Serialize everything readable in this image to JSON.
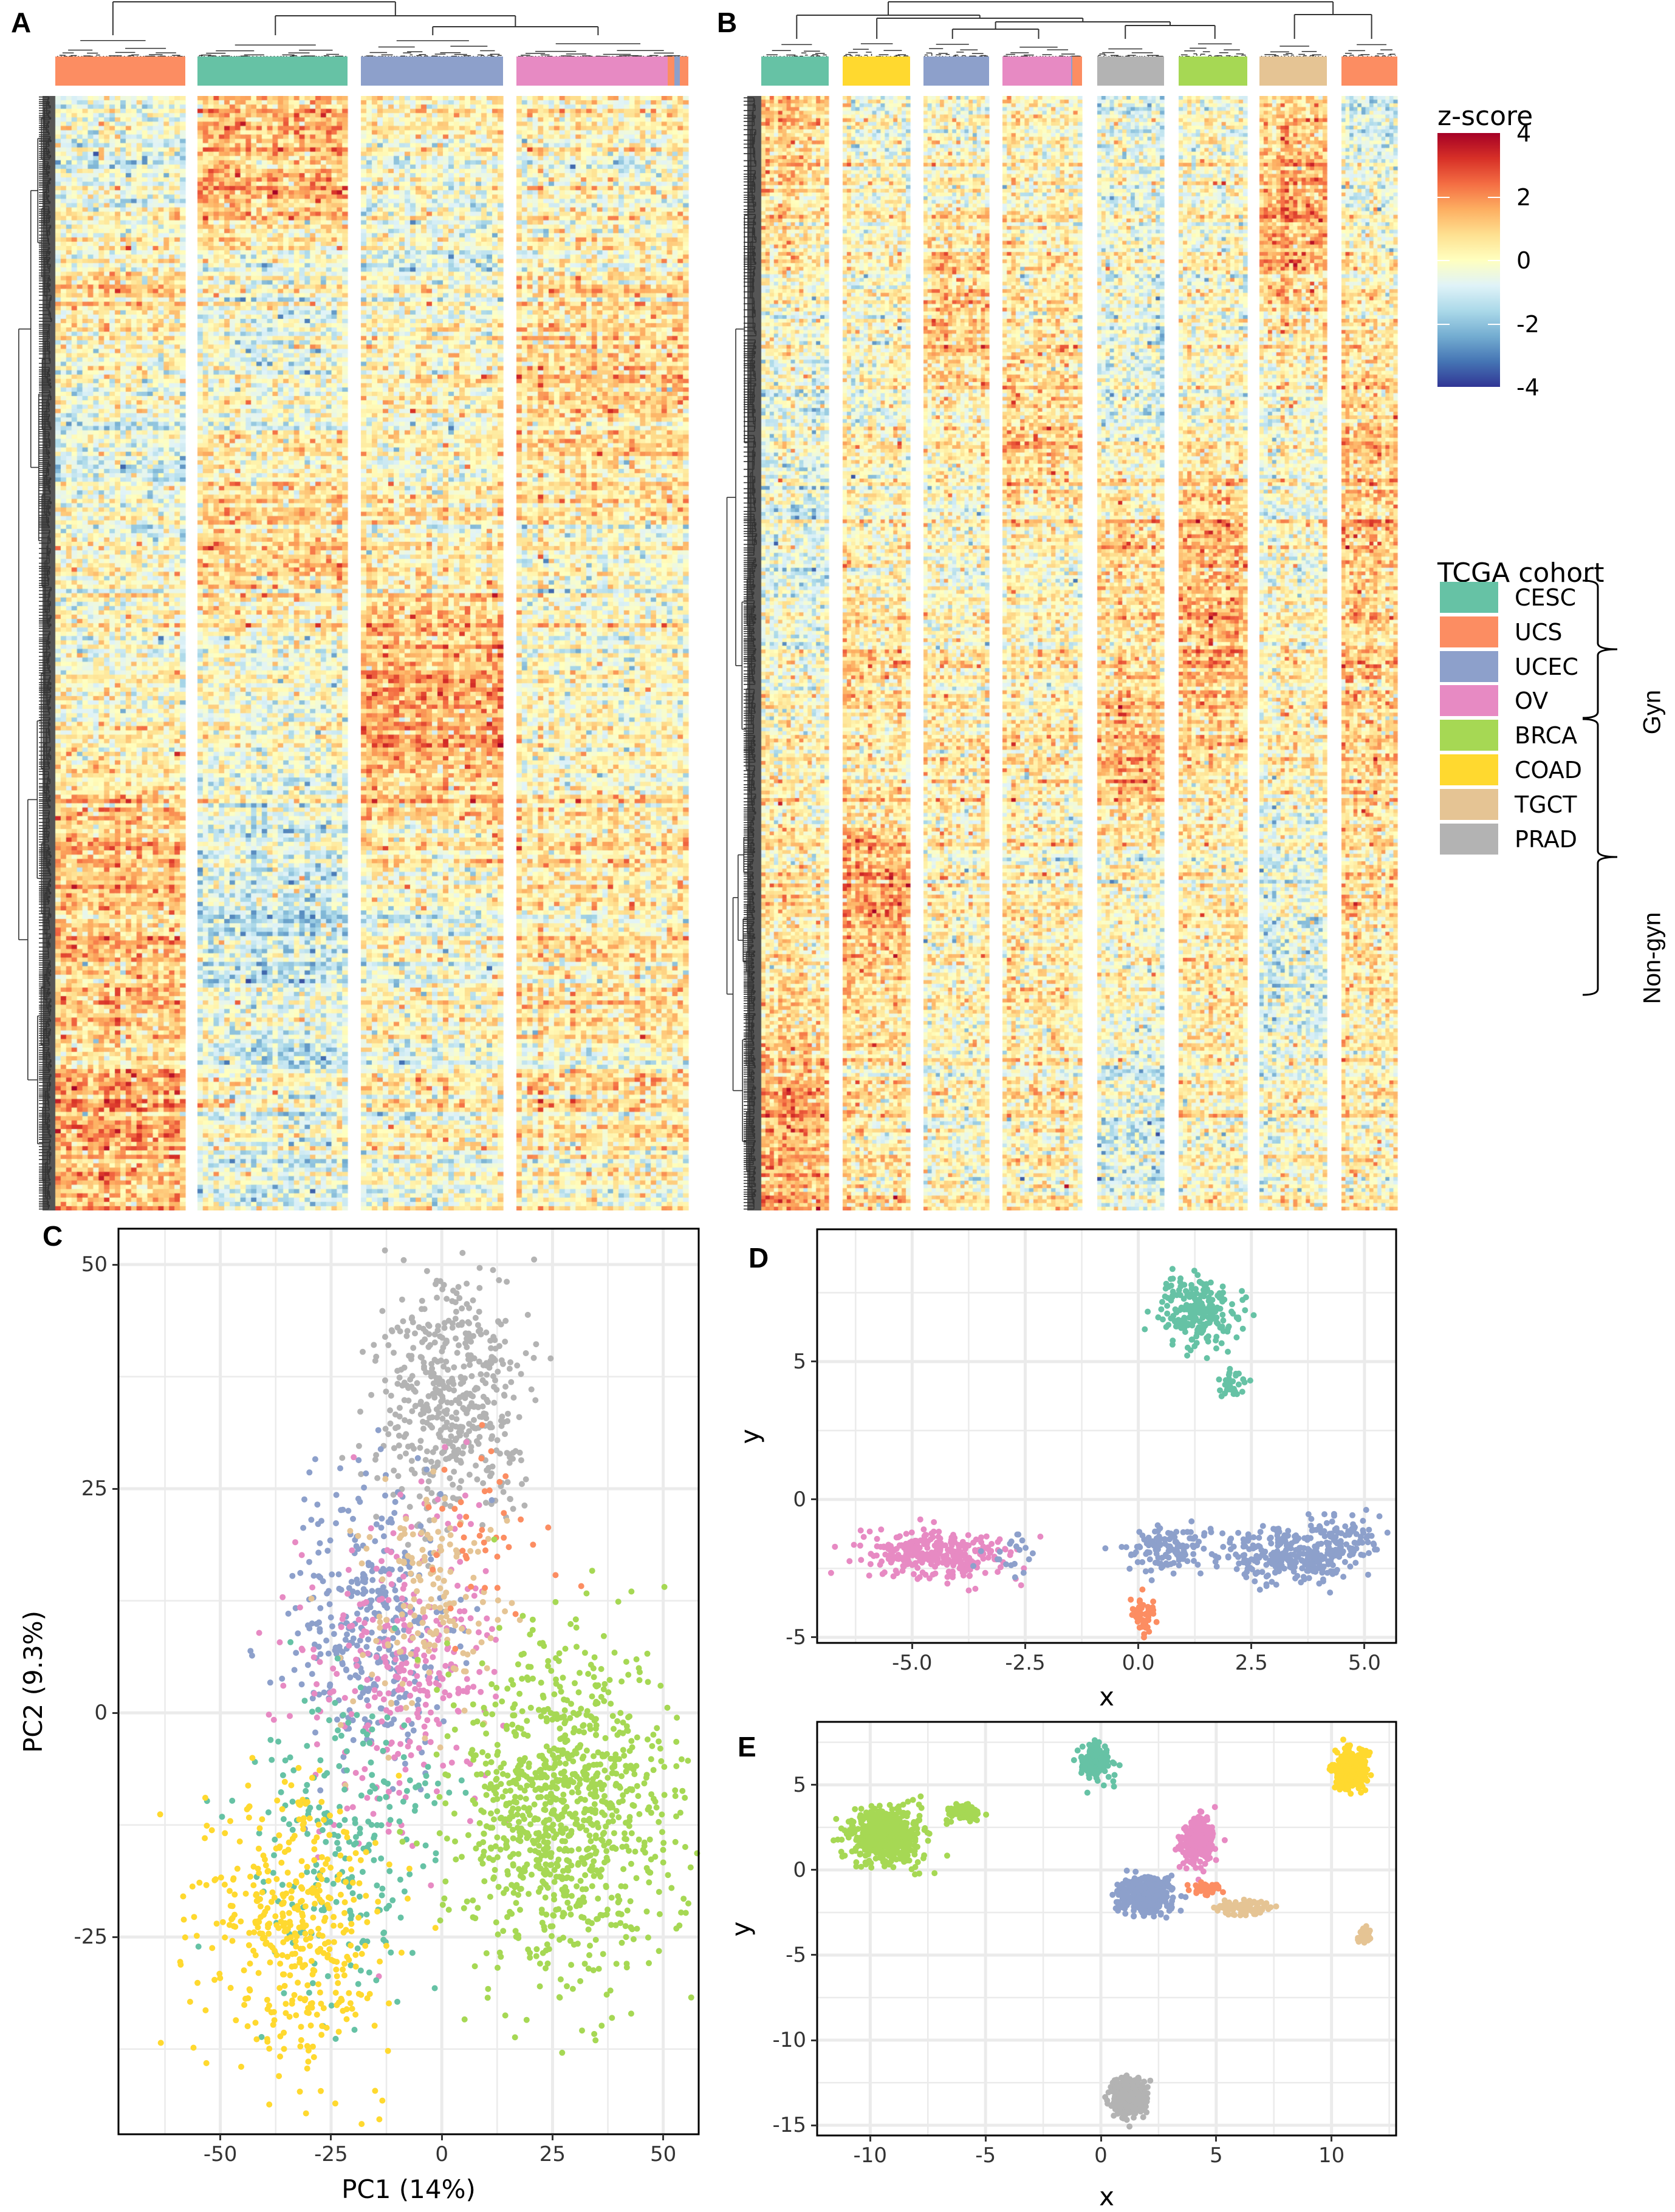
{
  "figure": {
    "panel_labels": {
      "A": "A",
      "B": "B",
      "C": "C",
      "D": "D",
      "E": "E"
    }
  },
  "cohorts": [
    {
      "key": "CESC",
      "label": "CESC",
      "color": "#66C2A5",
      "group": "Gyn"
    },
    {
      "key": "UCS",
      "label": "UCS",
      "color": "#FC8D62",
      "group": "Gyn"
    },
    {
      "key": "UCEC",
      "label": "UCEC",
      "color": "#8DA0CB",
      "group": "Gyn"
    },
    {
      "key": "OV",
      "label": "OV",
      "color": "#E78AC3",
      "group": "Gyn"
    },
    {
      "key": "BRCA",
      "label": "BRCA",
      "color": "#A6D854",
      "group": "Non-gyn"
    },
    {
      "key": "COAD",
      "label": "COAD",
      "color": "#FFD92F",
      "group": "Non-gyn"
    },
    {
      "key": "TGCT",
      "label": "TGCT",
      "color": "#E5C494",
      "group": "Non-gyn"
    },
    {
      "key": "PRAD",
      "label": "PRAD",
      "color": "#B3B3B3",
      "group": "Non-gyn"
    }
  ],
  "legend": {
    "zscore": {
      "title": "z-score",
      "ticks": [
        "4",
        "2",
        "0",
        "-2",
        "-4"
      ],
      "range": [
        -4,
        4
      ],
      "colors": [
        "#313695",
        "#4575B4",
        "#74ADD1",
        "#ABD9E9",
        "#E0F3F8",
        "#FFFFBF",
        "#FEE090",
        "#FDAE61",
        "#F46D43",
        "#D73027",
        "#A50026"
      ]
    },
    "cohort": {
      "title": "TCGA cohort",
      "groups": [
        {
          "label": "Gyn",
          "members": [
            "CESC",
            "UCS",
            "UCEC",
            "OV"
          ]
        },
        {
          "label": "Non-gyn",
          "members": [
            "BRCA",
            "COAD",
            "TGCT",
            "PRAD"
          ]
        }
      ]
    }
  },
  "chart_data": [
    {
      "id": "A",
      "type": "heatmap",
      "title": "",
      "description": "Hierarchically clustered z-score heatmap, gynecologic cohorts",
      "column_groups": [
        {
          "cohort": "UCS",
          "n_cols": 24,
          "annotation": [
            [
              "UCS",
              1.0
            ]
          ]
        },
        {
          "cohort": "CESC",
          "n_cols": 28,
          "annotation": [
            [
              "CESC",
              1.0
            ]
          ]
        },
        {
          "cohort": "UCEC",
          "n_cols": 26,
          "annotation": [
            [
              "UCEC",
              1.0
            ]
          ]
        },
        {
          "cohort": "OV",
          "n_cols": 32,
          "annotation": [
            [
              "OV",
              0.88
            ],
            [
              "UCS",
              0.04
            ],
            [
              "UCEC",
              0.03
            ],
            [
              "UCS",
              0.05
            ]
          ]
        }
      ],
      "n_rows": 260,
      "row_band_means": [
        [
          -0.6,
          1.0,
          0.2,
          0.1
        ],
        [
          -0.3,
          1.6,
          -0.1,
          0.1
        ],
        [
          0.6,
          -0.5,
          -0.6,
          0.3
        ],
        [
          -0.1,
          -0.4,
          0.1,
          1.1
        ],
        [
          -0.9,
          0.3,
          -0.2,
          0.4
        ],
        [
          0.1,
          1.0,
          0.3,
          -0.2
        ],
        [
          -0.2,
          -0.3,
          1.3,
          -0.1
        ],
        [
          0.2,
          -0.2,
          1.5,
          0.0
        ],
        [
          1.1,
          -0.8,
          0.2,
          0.4
        ],
        [
          1.2,
          -1.0,
          -0.3,
          0.6
        ],
        [
          0.9,
          -0.6,
          0.0,
          0.4
        ],
        [
          1.4,
          -0.5,
          -0.2,
          0.2
        ]
      ],
      "zlim": [
        -4,
        4
      ]
    },
    {
      "id": "B",
      "type": "heatmap",
      "title": "",
      "description": "Hierarchically clustered z-score heatmap, all cohorts",
      "column_groups": [
        {
          "cohort": "CESC",
          "n_cols": 16,
          "annotation": [
            [
              "CESC",
              1.0
            ]
          ]
        },
        {
          "cohort": "COAD",
          "n_cols": 16,
          "annotation": [
            [
              "COAD",
              1.0
            ]
          ]
        },
        {
          "cohort": "UCEC",
          "n_cols": 16,
          "annotation": [
            [
              "UCEC",
              1.0
            ]
          ]
        },
        {
          "cohort": "OV",
          "n_cols": 18,
          "annotation": [
            [
              "OV",
              0.86
            ],
            [
              "UCEC",
              0.02
            ],
            [
              "UCS",
              0.12
            ]
          ]
        },
        {
          "cohort": "PRAD",
          "n_cols": 16,
          "annotation": [
            [
              "PRAD",
              1.0
            ]
          ]
        },
        {
          "cohort": "BRCA",
          "n_cols": 16,
          "annotation": [
            [
              "BRCA",
              1.0
            ]
          ]
        },
        {
          "cohort": "TGCT",
          "n_cols": 16,
          "annotation": [
            [
              "TGCT",
              1.0
            ]
          ]
        },
        {
          "cohort": "UCS",
          "n_cols": 14,
          "annotation": [
            [
              "UCS",
              1.0
            ]
          ]
        }
      ],
      "n_rows": 300,
      "row_band_means": [
        [
          1.2,
          -0.1,
          0.0,
          0.3,
          -0.4,
          0.2,
          1.0,
          -0.8
        ],
        [
          0.6,
          0.1,
          0.2,
          0.1,
          -0.3,
          0.1,
          1.6,
          -0.3
        ],
        [
          -0.2,
          -0.2,
          1.2,
          0.3,
          -0.5,
          0.0,
          0.6,
          0.4
        ],
        [
          -0.6,
          0.0,
          0.2,
          1.1,
          -0.4,
          0.3,
          -0.3,
          1.0
        ],
        [
          -0.7,
          0.1,
          -0.1,
          0.1,
          1.1,
          1.5,
          -0.1,
          1.2
        ],
        [
          -0.3,
          0.7,
          0.2,
          0.2,
          0.6,
          1.4,
          0.1,
          0.9
        ],
        [
          0.0,
          0.1,
          0.4,
          0.3,
          1.5,
          0.6,
          0.2,
          0.7
        ],
        [
          0.4,
          1.8,
          0.1,
          0.0,
          -0.2,
          0.3,
          -0.6,
          0.6
        ],
        [
          0.3,
          0.6,
          0.1,
          0.2,
          -0.1,
          0.5,
          -1.0,
          0.3
        ],
        [
          1.4,
          0.5,
          0.0,
          0.2,
          -0.6,
          0.2,
          -0.1,
          0.2
        ]
      ],
      "zlim": [
        -4,
        4
      ]
    },
    {
      "id": "C",
      "type": "scatter",
      "title": "",
      "xlabel": "PC1 (14%)",
      "ylabel": "PC2 (9.3%)",
      "xlim": [
        -73,
        58
      ],
      "ylim": [
        -47,
        54
      ],
      "xticks": [
        -50,
        -25,
        0,
        25,
        50
      ],
      "yticks": [
        -25,
        0,
        25,
        50
      ],
      "grid": true,
      "legend": "shared (TCGA cohort)",
      "clusters": [
        {
          "cohort": "PRAD",
          "center": [
            2,
            35
          ],
          "spread": [
            9,
            7
          ],
          "n": 500
        },
        {
          "cohort": "UCEC",
          "center": [
            -17,
            10
          ],
          "spread": [
            9,
            8
          ],
          "n": 350
        },
        {
          "cohort": "OV",
          "center": [
            -9,
            5
          ],
          "spread": [
            11,
            9
          ],
          "n": 300
        },
        {
          "cohort": "TGCT",
          "center": [
            -4,
            12
          ],
          "spread": [
            8,
            7
          ],
          "n": 160
        },
        {
          "cohort": "UCS",
          "center": [
            8,
            19
          ],
          "spread": [
            8,
            6
          ],
          "n": 40
        },
        {
          "cohort": "CESC",
          "center": [
            -22,
            -14
          ],
          "spread": [
            11,
            9
          ],
          "n": 230
        },
        {
          "cohort": "COAD",
          "center": [
            -34,
            -24
          ],
          "spread": [
            11,
            8
          ],
          "n": 420
        },
        {
          "cohort": "BRCA",
          "center": [
            28,
            -11
          ],
          "spread": [
            12,
            9
          ],
          "n": 1000
        }
      ]
    },
    {
      "id": "D",
      "type": "scatter",
      "title": "",
      "xlabel": "x",
      "ylabel": "y",
      "xlim": [
        -7.1,
        5.7
      ],
      "ylim": [
        -5.2,
        9.8
      ],
      "xticks": [
        "-5.0",
        "-2.5",
        "0.0",
        "2.5",
        "5.0"
      ],
      "yticks": [
        -5,
        0,
        5
      ],
      "grid": true,
      "clusters": [
        {
          "cohort": "CESC",
          "center": [
            1.3,
            6.8
          ],
          "spread": [
            0.45,
            0.6
          ],
          "n": 220
        },
        {
          "cohort": "CESC",
          "center": [
            2.0,
            4.2
          ],
          "spread": [
            0.2,
            0.25
          ],
          "n": 30
        },
        {
          "cohort": "OV",
          "center": [
            -4.5,
            -2.0
          ],
          "spread": [
            0.8,
            0.45
          ],
          "n": 300
        },
        {
          "cohort": "UCEC",
          "center": [
            0.6,
            -1.9
          ],
          "spread": [
            0.45,
            0.4
          ],
          "n": 120
        },
        {
          "cohort": "UCEC",
          "center": [
            3.3,
            -2.0
          ],
          "spread": [
            0.8,
            0.5
          ],
          "n": 300
        },
        {
          "cohort": "UCEC",
          "center": [
            4.6,
            -1.3
          ],
          "spread": [
            0.4,
            0.4
          ],
          "n": 70
        },
        {
          "cohort": "UCEC",
          "center": [
            -2.9,
            -1.9
          ],
          "spread": [
            0.3,
            0.4
          ],
          "n": 20
        },
        {
          "cohort": "UCS",
          "center": [
            0.1,
            -4.2
          ],
          "spread": [
            0.2,
            0.35
          ],
          "n": 45
        }
      ]
    },
    {
      "id": "E",
      "type": "scatter",
      "title": "",
      "xlabel": "x",
      "ylabel": "y",
      "xlim": [
        -12.3,
        12.8
      ],
      "ylim": [
        -15.6,
        8.7
      ],
      "xticks": [
        -10,
        -5,
        0,
        5,
        10
      ],
      "yticks": [
        -15,
        -10,
        -5,
        0,
        5
      ],
      "grid": true,
      "clusters": [
        {
          "cohort": "BRCA",
          "center": [
            -9.3,
            2.0
          ],
          "spread": [
            0.8,
            0.8
          ],
          "n": 500
        },
        {
          "cohort": "BRCA",
          "center": [
            -6.0,
            3.4
          ],
          "spread": [
            0.35,
            0.22
          ],
          "n": 100
        },
        {
          "cohort": "CESC",
          "center": [
            -0.3,
            6.4
          ],
          "spread": [
            0.35,
            0.5
          ],
          "n": 150
        },
        {
          "cohort": "COAD",
          "center": [
            10.8,
            5.9
          ],
          "spread": [
            0.35,
            0.55
          ],
          "n": 300
        },
        {
          "cohort": "OV",
          "center": [
            4.2,
            1.7
          ],
          "spread": [
            0.35,
            0.7
          ],
          "n": 300
        },
        {
          "cohort": "UCEC",
          "center": [
            2.0,
            -1.5
          ],
          "spread": [
            0.55,
            0.55
          ],
          "n": 400
        },
        {
          "cohort": "UCS",
          "center": [
            4.5,
            -1.1
          ],
          "spread": [
            0.3,
            0.2
          ],
          "n": 50
        },
        {
          "cohort": "TGCT",
          "center": [
            6.2,
            -2.2
          ],
          "spread": [
            0.55,
            0.2
          ],
          "n": 80
        },
        {
          "cohort": "TGCT",
          "center": [
            11.4,
            -3.9
          ],
          "spread": [
            0.15,
            0.2
          ],
          "n": 40
        },
        {
          "cohort": "PRAD",
          "center": [
            1.2,
            -13.4
          ],
          "spread": [
            0.35,
            0.5
          ],
          "n": 400
        }
      ]
    }
  ]
}
